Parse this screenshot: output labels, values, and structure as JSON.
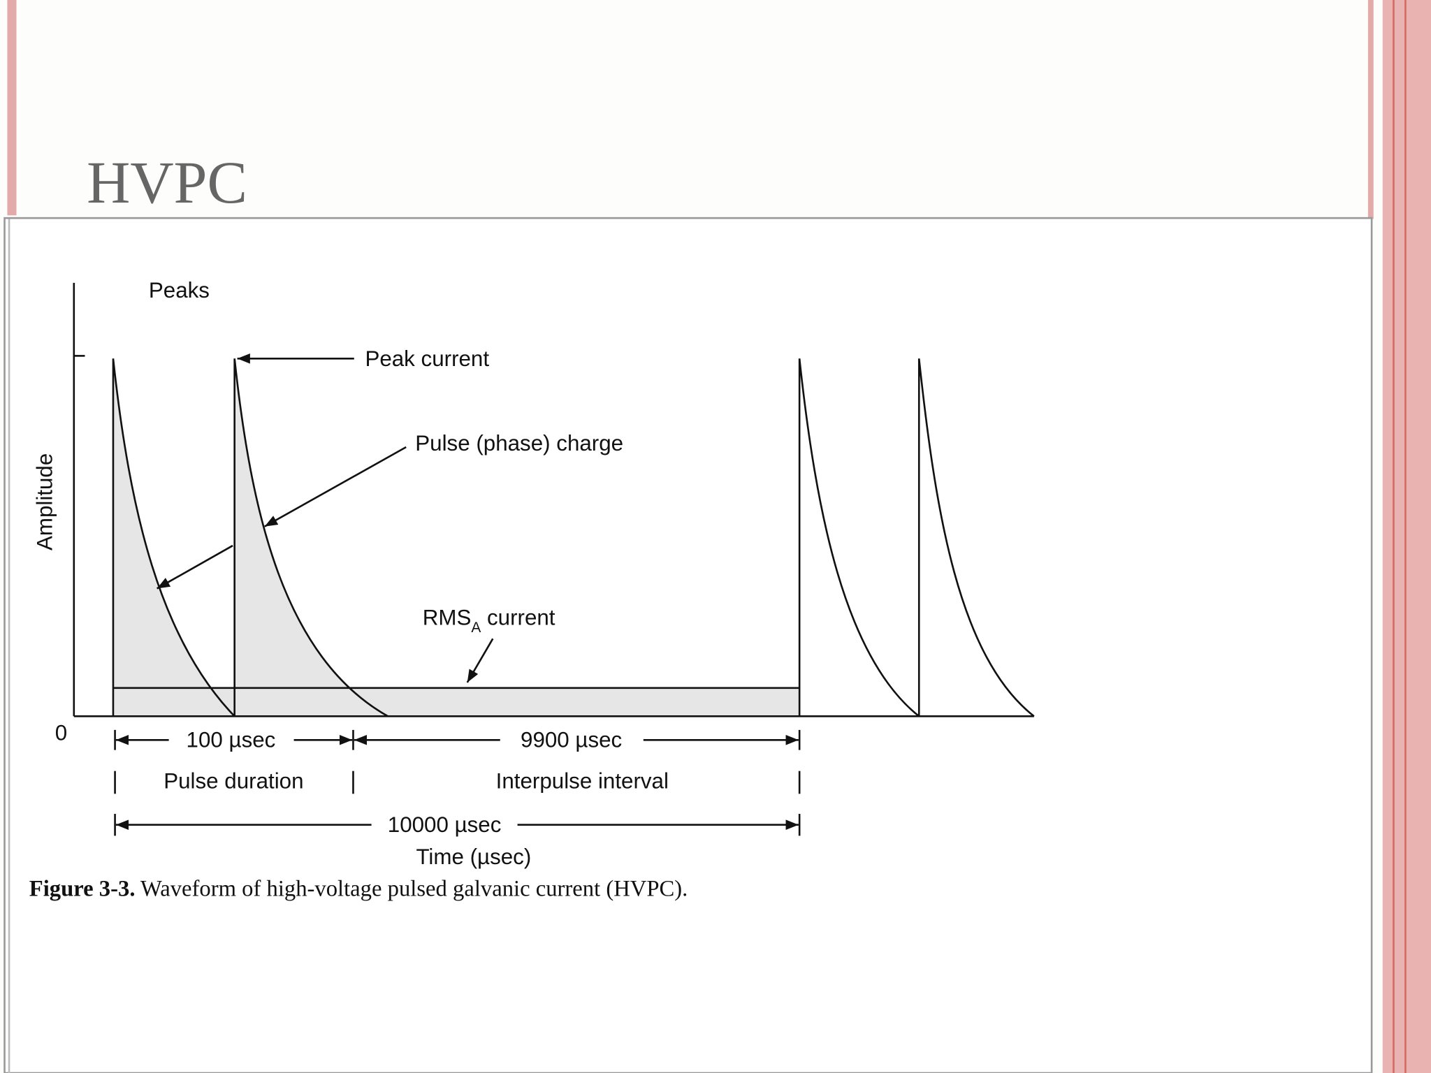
{
  "slide": {
    "title": "HVPC"
  },
  "figure": {
    "y_axis_label": "Amplitude",
    "origin_label": "0",
    "annotations": {
      "peaks": "Peaks",
      "peak_current": "Peak current",
      "pulse_charge": "Pulse (phase) charge",
      "rms_main": "RMS",
      "rms_sub": "A",
      "rms_rest": " current"
    },
    "dimensions": {
      "pulse_time": "100 µsec",
      "interpulse_time": "9900 µsec",
      "pulse_duration": "Pulse duration",
      "interpulse_interval": "Interpulse interval",
      "period": "10000 µsec",
      "x_axis_label": "Time (µsec)"
    },
    "caption": {
      "number": "Figure 3-3.",
      "text": " Waveform of high-voltage pulsed galvanic current (HVPC)."
    }
  }
}
